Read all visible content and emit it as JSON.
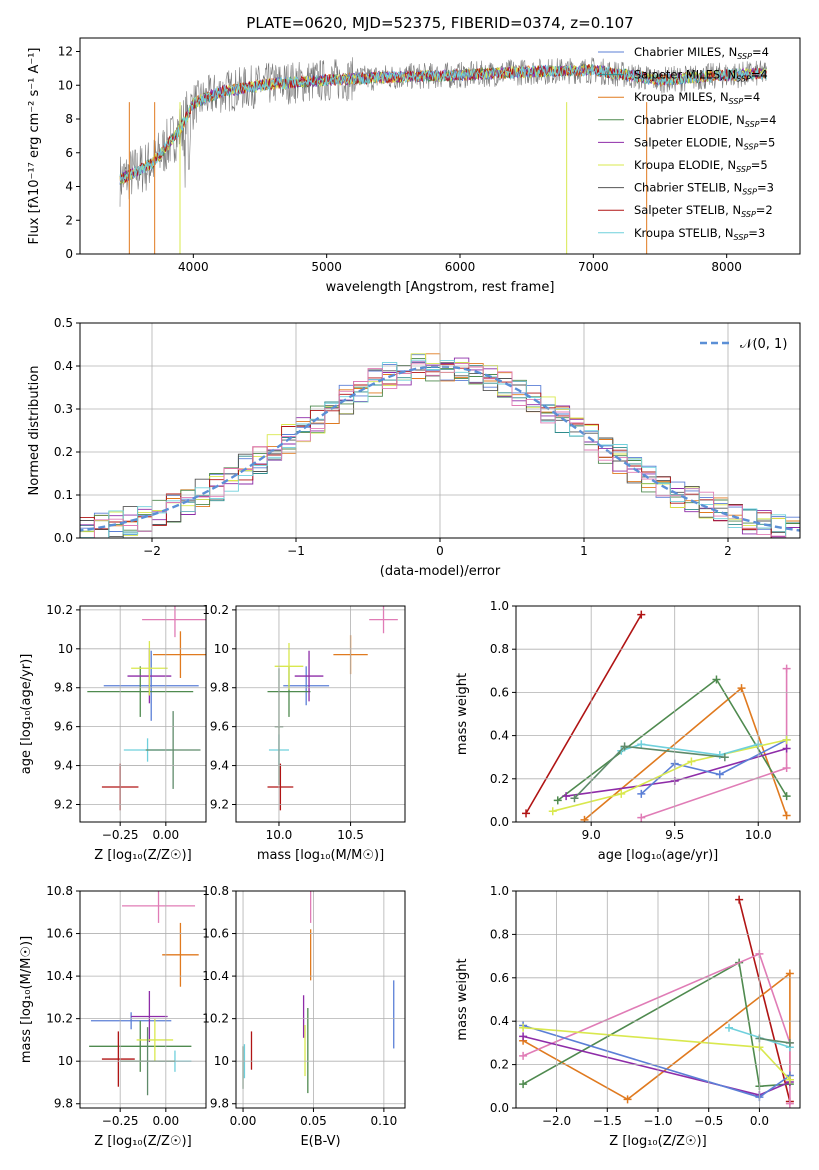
{
  "figure_title": "PLATE=0620, MJD=52375, FIBERID=0374, z=0.107",
  "models": [
    {
      "name": "Chabrier MILES",
      "nssp": "4",
      "color": "#5b7fd6"
    },
    {
      "name": "Salpeter MILES",
      "nssp": "4",
      "color": "#2e8b8b"
    },
    {
      "name": "Kroupa MILES",
      "nssp": "4",
      "color": "#e07a1f"
    },
    {
      "name": "Chabrier ELODIE",
      "nssp": "4",
      "color": "#4f8a4f"
    },
    {
      "name": "Salpeter ELODIE",
      "nssp": "5",
      "color": "#8e2ca8"
    },
    {
      "name": "Kroupa ELODIE",
      "nssp": "5",
      "color": "#d9e84e"
    },
    {
      "name": "Chabrier STELIB",
      "nssp": "3",
      "color": "#555555"
    },
    {
      "name": "Salpeter STELIB",
      "nssp": "2",
      "color": "#b01414"
    },
    {
      "name": "Kroupa STELIB",
      "nssp": "3",
      "color": "#6fd0dc"
    }
  ],
  "extra_colors": {
    "pink": "#e07cb6",
    "sage": "#5e8a6a",
    "green": "#7ab648",
    "dashed": "#5b8fd6"
  },
  "nssp_prefix": "N",
  "nssp_sub": "SSP",
  "chart_data": [
    {
      "type": "line",
      "panel": "spectrum",
      "xlabel": "wavelength [Angstrom, rest frame]",
      "ylabel": "Flux [fλ10⁻¹⁷ erg cm⁻² s⁻¹ A⁻¹]",
      "xlim": [
        3150,
        8550
      ],
      "ylim": [
        0,
        12.8
      ],
      "xticks": [
        4000,
        5000,
        6000,
        7000,
        8000
      ],
      "yticks": [
        0,
        2,
        4,
        6,
        8,
        10,
        12
      ],
      "grid": false,
      "legend": "right",
      "x_range": [
        3450,
        8300
      ],
      "approx_continuum": [
        [
          3450,
          4.4
        ],
        [
          3700,
          5.4
        ],
        [
          3900,
          7.4
        ],
        [
          4000,
          8.9
        ],
        [
          4200,
          9.6
        ],
        [
          4600,
          10.1
        ],
        [
          5000,
          10.3
        ],
        [
          5500,
          10.5
        ],
        [
          6000,
          10.6
        ],
        [
          6500,
          10.8
        ],
        [
          7000,
          10.9
        ],
        [
          7500,
          10.3
        ],
        [
          8000,
          10.6
        ],
        [
          8300,
          10.7
        ]
      ]
    },
    {
      "type": "line",
      "panel": "residual_distribution",
      "xlabel": "(data-model)/error",
      "ylabel": "Normed distribution",
      "xlim": [
        -2.5,
        2.5
      ],
      "ylim": [
        0,
        0.5
      ],
      "xticks": [
        -2,
        -1,
        0,
        1,
        2
      ],
      "yticks": [
        0.0,
        0.1,
        0.2,
        0.3,
        0.4,
        0.5
      ],
      "grid": true,
      "legend": "top-right",
      "reference_label": "𝒩(0, 1)"
    },
    {
      "type": "scatter",
      "panel": "age_vs_Z",
      "xlabel": "Z [log₁₀(Z/Z☉)]",
      "ylabel": "age  [log₁₀(age/yr)]",
      "xlim": [
        -0.47,
        0.22
      ],
      "ylim": [
        9.11,
        10.22
      ],
      "xticks": [
        -0.25,
        0.0
      ],
      "xtick_labels": [
        "−0.25",
        "0.00"
      ],
      "yticks": [
        9.2,
        9.4,
        9.6,
        9.8,
        10.0,
        10.2
      ],
      "grid": true,
      "points": [
        {
          "x": -0.08,
          "xerr": 0.26,
          "y": 9.81,
          "yerr": 0.18,
          "color": "#5b7fd6"
        },
        {
          "x": 0.08,
          "xerr": 0.15,
          "y": 9.97,
          "yerr": 0.12,
          "color": "#e07a1f"
        },
        {
          "x": -0.14,
          "xerr": 0.29,
          "y": 9.78,
          "yerr": 0.13,
          "color": "#4f8a4f"
        },
        {
          "x": -0.09,
          "xerr": 0.12,
          "y": 9.86,
          "yerr": 0.14,
          "color": "#8e2ca8"
        },
        {
          "x": -0.09,
          "xerr": 0.1,
          "y": 9.9,
          "yerr": 0.14,
          "color": "#d9e84e"
        },
        {
          "x": 0.05,
          "xerr": 0.18,
          "y": 10.15,
          "yerr": 0.09,
          "color": "#e07cb6"
        },
        {
          "x": -0.25,
          "xerr": 0.1,
          "y": 9.29,
          "yerr": 0.12,
          "color": "#b01414"
        },
        {
          "x": -0.1,
          "xerr": 0.13,
          "y": 9.48,
          "yerr": 0.06,
          "color": "#6fd0dc"
        },
        {
          "x": 0.04,
          "xerr": 0.15,
          "y": 9.48,
          "yerr": 0.2,
          "color": "#5e8a6a"
        }
      ]
    },
    {
      "type": "scatter",
      "panel": "age_vs_mass",
      "xlabel": "mass [log₁₀(M/M☉)]",
      "ylabel": "",
      "xlim": [
        9.7,
        10.88
      ],
      "ylim": [
        9.11,
        10.22
      ],
      "xticks": [
        10.0,
        10.5
      ],
      "xtick_labels": [
        "10.0",
        "10.5"
      ],
      "yticks": [
        9.2,
        9.4,
        9.6,
        9.8,
        10.0,
        10.2
      ],
      "grid": true,
      "points": [
        {
          "x": 10.19,
          "xerr": 0.16,
          "y": 9.81,
          "yerr": 0.1,
          "color": "#5b7fd6"
        },
        {
          "x": 10.5,
          "xerr": 0.12,
          "y": 9.97,
          "yerr": 0.1,
          "color": "#e07a1f"
        },
        {
          "x": 10.07,
          "xerr": 0.15,
          "y": 9.78,
          "yerr": 0.13,
          "color": "#4f8a4f"
        },
        {
          "x": 10.21,
          "xerr": 0.1,
          "y": 9.86,
          "yerr": 0.13,
          "color": "#8e2ca8"
        },
        {
          "x": 10.07,
          "xerr": 0.1,
          "y": 9.91,
          "yerr": 0.12,
          "color": "#d9e84e"
        },
        {
          "x": 10.73,
          "xerr": 0.1,
          "y": 10.15,
          "yerr": 0.07,
          "color": "#e07cb6"
        },
        {
          "x": 10.01,
          "xerr": 0.09,
          "y": 9.29,
          "yerr": 0.12,
          "color": "#b01414"
        },
        {
          "x": 10.0,
          "xerr": 0.07,
          "y": 9.48,
          "yerr": 0.08,
          "color": "#6fd0dc"
        },
        {
          "x": 10.0,
          "xerr": 0.03,
          "y": 9.6,
          "yerr": 0.3,
          "color": "#5e8a6a"
        }
      ]
    },
    {
      "type": "line",
      "panel": "mass_weight_vs_age",
      "xlabel": "age  [log₁₀(age/yr)]",
      "ylabel": "mass weight",
      "xlim": [
        8.55,
        10.25
      ],
      "ylim": [
        0,
        1.0
      ],
      "xticks": [
        9.0,
        9.5,
        10.0
      ],
      "xtick_labels": [
        "9.0",
        "9.5",
        "10.0"
      ],
      "yticks": [
        0.0,
        0.2,
        0.4,
        0.6,
        0.8,
        1.0
      ],
      "grid": true,
      "series": [
        {
          "color": "#b01414",
          "x": [
            8.61,
            9.3
          ],
          "y": [
            0.04,
            0.96
          ]
        },
        {
          "color": "#e07a1f",
          "x": [
            8.96,
            9.9,
            10.17
          ],
          "y": [
            0.01,
            0.62,
            0.03
          ]
        },
        {
          "color": "#4f8a4f",
          "x": [
            8.8,
            9.75,
            10.17
          ],
          "y": [
            0.1,
            0.66,
            0.12
          ]
        },
        {
          "color": "#e07cb6",
          "x": [
            9.3,
            10.17,
            10.17
          ],
          "y": [
            0.02,
            0.25,
            0.71
          ]
        },
        {
          "color": "#8e2ca8",
          "x": [
            8.85,
            9.5,
            10.17
          ],
          "y": [
            0.12,
            0.19,
            0.34
          ]
        },
        {
          "color": "#5b7fd6",
          "x": [
            9.3,
            9.5,
            9.77,
            10.17
          ],
          "y": [
            0.13,
            0.27,
            0.22,
            0.38
          ]
        },
        {
          "color": "#d9e84e",
          "x": [
            8.77,
            9.18,
            9.6,
            10.17
          ],
          "y": [
            0.05,
            0.13,
            0.28,
            0.38
          ]
        },
        {
          "color": "#6fd0dc",
          "x": [
            9.18,
            9.3,
            9.77,
            10.0
          ],
          "y": [
            0.33,
            0.36,
            0.31,
            0.36
          ]
        },
        {
          "color": "#5e8a6a",
          "x": [
            8.9,
            9.2,
            9.8
          ],
          "y": [
            0.11,
            0.35,
            0.3
          ]
        }
      ]
    },
    {
      "type": "scatter",
      "panel": "mass_vs_Z",
      "xlabel": "Z [log₁₀(Z/Z☉)]",
      "ylabel": "mass [log₁₀(M/M☉)]",
      "xlim": [
        -0.47,
        0.22
      ],
      "ylim": [
        9.78,
        10.8
      ],
      "xticks": [
        -0.25,
        0.0
      ],
      "xtick_labels": [
        "−0.25",
        "0.00"
      ],
      "yticks": [
        9.8,
        10.0,
        10.2,
        10.4,
        10.6,
        10.8
      ],
      "grid": true,
      "points": [
        {
          "x": -0.19,
          "xerr": 0.22,
          "y": 10.19,
          "yerr": 0.04,
          "color": "#5b7fd6"
        },
        {
          "x": 0.08,
          "xerr": 0.1,
          "y": 10.5,
          "yerr": 0.15,
          "color": "#e07a1f"
        },
        {
          "x": -0.14,
          "xerr": 0.28,
          "y": 10.07,
          "yerr": 0.12,
          "color": "#4f8a4f"
        },
        {
          "x": -0.09,
          "xerr": 0.1,
          "y": 10.21,
          "yerr": 0.12,
          "color": "#8e2ca8"
        },
        {
          "x": -0.06,
          "xerr": 0.1,
          "y": 10.1,
          "yerr": 0.1,
          "color": "#d9e84e"
        },
        {
          "x": -0.04,
          "xerr": 0.2,
          "y": 10.73,
          "yerr": 0.08,
          "color": "#e07cb6"
        },
        {
          "x": -0.26,
          "xerr": 0.09,
          "y": 10.01,
          "yerr": 0.13,
          "color": "#b01414"
        },
        {
          "x": 0.05,
          "xerr": 0.09,
          "y": 10.0,
          "yerr": 0.05,
          "color": "#6fd0dc"
        },
        {
          "x": -0.1,
          "xerr": 0.15,
          "y": 10.0,
          "yerr": 0.16,
          "color": "#5e8a6a"
        }
      ]
    },
    {
      "type": "scatter",
      "panel": "mass_vs_EBV",
      "xlabel": "E(B-V)",
      "ylabel": "",
      "xlim": [
        -0.005,
        0.115
      ],
      "ylim": [
        9.78,
        10.8
      ],
      "xticks": [
        0.0,
        0.05,
        0.1
      ],
      "xtick_labels": [
        "0.00",
        "0.05",
        "0.10"
      ],
      "yticks": [
        9.8,
        10.0,
        10.2,
        10.4,
        10.6,
        10.8
      ],
      "grid": true,
      "points": [
        {
          "x": 0.107,
          "xerr": 0,
          "y": 10.22,
          "yerr": 0.16,
          "color": "#5b7fd6"
        },
        {
          "x": 0.048,
          "xerr": 0,
          "y": 10.5,
          "yerr": 0.12,
          "color": "#e07a1f"
        },
        {
          "x": 0.046,
          "xerr": 0,
          "y": 10.05,
          "yerr": 0.2,
          "color": "#4f8a4f"
        },
        {
          "x": 0.043,
          "xerr": 0,
          "y": 10.21,
          "yerr": 0.1,
          "color": "#8e2ca8"
        },
        {
          "x": 0.044,
          "xerr": 0,
          "y": 10.05,
          "yerr": 0.12,
          "color": "#d9e84e"
        },
        {
          "x": 0.048,
          "xerr": 0,
          "y": 10.73,
          "yerr": 0.08,
          "color": "#e07cb6"
        },
        {
          "x": 0.006,
          "xerr": 0,
          "y": 10.05,
          "yerr": 0.09,
          "color": "#b01414"
        },
        {
          "x": 0.001,
          "xerr": 0,
          "y": 10.0,
          "yerr": 0.08,
          "color": "#6fd0dc"
        },
        {
          "x": 0.0,
          "xerr": 0,
          "y": 9.97,
          "yerr": 0.1,
          "color": "#5e8a6a"
        }
      ]
    },
    {
      "type": "line",
      "panel": "mass_weight_vs_Z",
      "xlabel": "Z [log₁₀(Z/Z☉)]",
      "ylabel": "mass weight",
      "xlim": [
        -2.4,
        0.4
      ],
      "ylim": [
        0,
        1.0
      ],
      "xticks": [
        -2.0,
        -1.5,
        -1.0,
        -0.5,
        0.0
      ],
      "xtick_labels": [
        "−2.0",
        "−1.5",
        "−1.0",
        "−0.5",
        "0.0"
      ],
      "yticks": [
        0.0,
        0.2,
        0.4,
        0.6,
        0.8,
        1.0
      ],
      "grid": true,
      "series": [
        {
          "color": "#b01414",
          "x": [
            -0.2,
            0.3
          ],
          "y": [
            0.96,
            0.03
          ]
        },
        {
          "color": "#e07a1f",
          "x": [
            -2.33,
            -1.3,
            0.3,
            0.3
          ],
          "y": [
            0.31,
            0.04,
            0.62,
            0.13
          ]
        },
        {
          "color": "#4f8a4f",
          "x": [
            -2.33,
            -0.2,
            0.0,
            0.3
          ],
          "y": [
            0.11,
            0.67,
            0.1,
            0.11
          ]
        },
        {
          "color": "#e07cb6",
          "x": [
            -2.33,
            0.0,
            0.3,
            0.3
          ],
          "y": [
            0.24,
            0.71,
            0.3,
            0.02
          ]
        },
        {
          "color": "#8e2ca8",
          "x": [
            -2.33,
            0.0,
            0.3
          ],
          "y": [
            0.33,
            0.06,
            0.12
          ]
        },
        {
          "color": "#5b7fd6",
          "x": [
            -2.33,
            0.0,
            0.3
          ],
          "y": [
            0.38,
            0.05,
            0.15
          ]
        },
        {
          "color": "#d9e84e",
          "x": [
            -2.33,
            0.0,
            0.3
          ],
          "y": [
            0.37,
            0.28,
            0.13
          ]
        },
        {
          "color": "#6fd0dc",
          "x": [
            -0.3,
            0.3
          ],
          "y": [
            0.37,
            0.28
          ]
        },
        {
          "color": "#5e8a6a",
          "x": [
            0.0,
            0.3
          ],
          "y": [
            0.32,
            0.3
          ]
        }
      ]
    }
  ]
}
